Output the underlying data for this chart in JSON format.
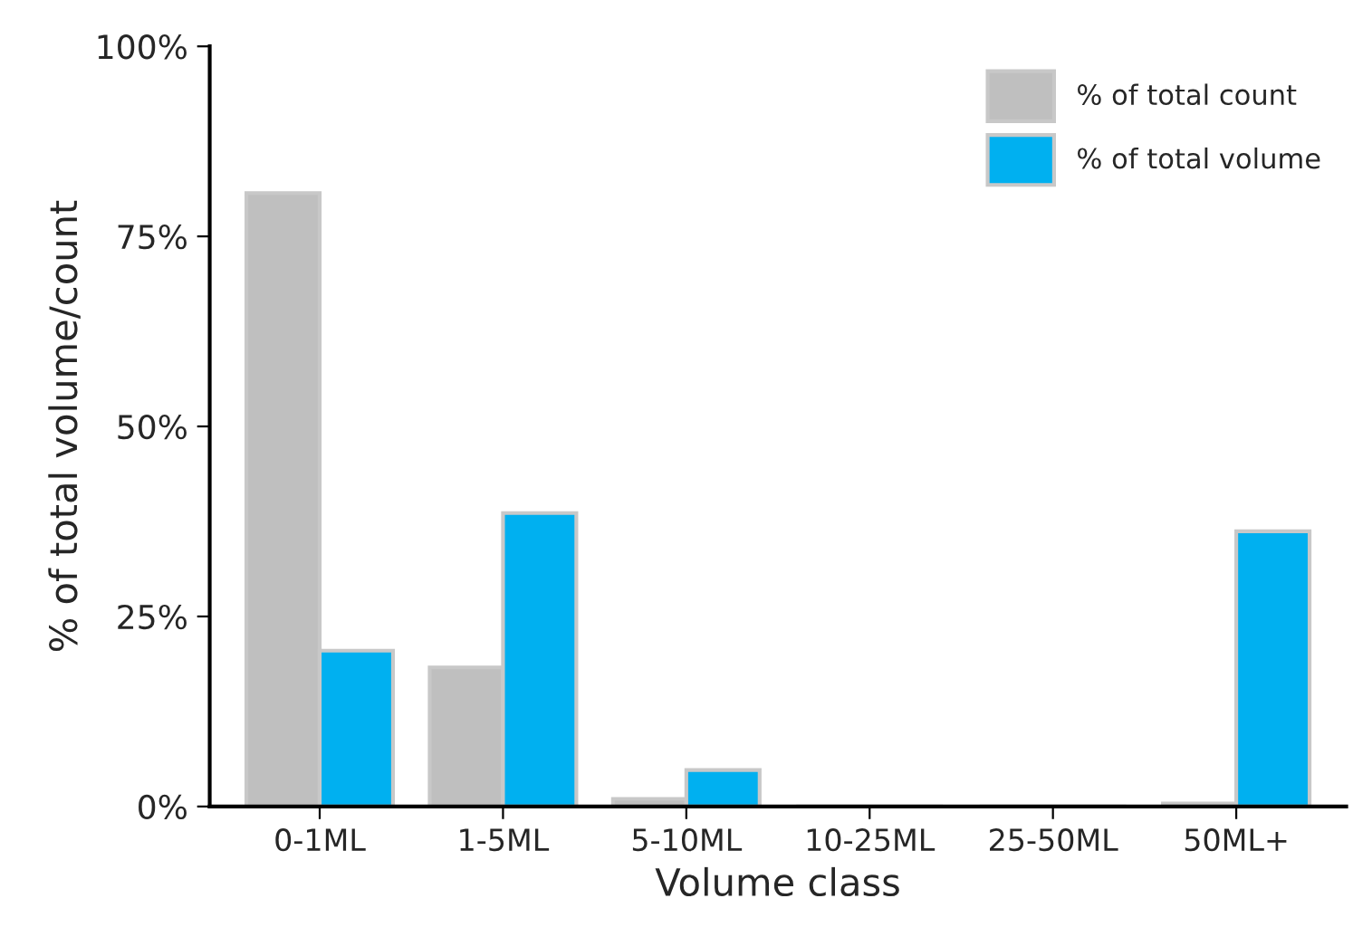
{
  "chart_data": {
    "type": "bar",
    "xlabel": "Volume class",
    "ylabel": "% of total volume/count",
    "categories": [
      "0-1ML",
      "1-5ML",
      "5-10ML",
      "10-25ML",
      "25-50ML",
      "50ML+"
    ],
    "series": [
      {
        "name": "% of total count",
        "color": "#bfbfbf",
        "values": [
          80.7,
          18.3,
          1,
          0,
          0,
          0.4
        ]
      },
      {
        "name": "% of total volume",
        "color": "#00b0f0",
        "values": [
          20.5,
          38.6,
          4.8,
          0,
          0,
          36.2
        ]
      }
    ],
    "ylim": [
      0,
      100
    ],
    "yticks": [
      {
        "value": 0,
        "label": "0%"
      },
      {
        "value": 25,
        "label": "25%"
      },
      {
        "value": 50,
        "label": "50%"
      },
      {
        "value": 75,
        "label": "75%"
      },
      {
        "value": 100,
        "label": "100%"
      }
    ],
    "grid": false,
    "legend": "top right"
  }
}
